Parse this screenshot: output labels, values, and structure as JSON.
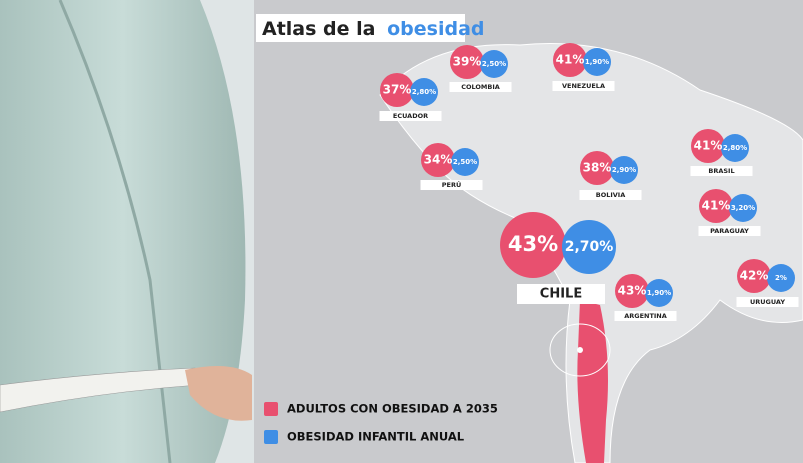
{
  "title": {
    "prefix": "Atlas de la",
    "highlight": "obesidad"
  },
  "countries": [
    {
      "name": "COLOMBIA",
      "adults": "39%",
      "children": "2,50%"
    },
    {
      "name": "VENEZUELA",
      "adults": "41%",
      "children": "1,90%"
    },
    {
      "name": "ECUADOR",
      "adults": "37%",
      "children": "2,80%"
    },
    {
      "name": "PERÚ",
      "adults": "34%",
      "children": "2,50%"
    },
    {
      "name": "BOLIVIA",
      "adults": "38%",
      "children": "2,90%"
    },
    {
      "name": "BRASIL",
      "adults": "41%",
      "children": "2,80%"
    },
    {
      "name": "PARAGUAY",
      "adults": "41%",
      "children": "3,20%"
    },
    {
      "name": "CHILE",
      "adults": "43%",
      "children": "2,70%"
    },
    {
      "name": "ARGENTINA",
      "adults": "43%",
      "children": "1,90%"
    },
    {
      "name": "URUGUAY",
      "adults": "42%",
      "children": "2%"
    }
  ],
  "legend": [
    {
      "label": "ADULTOS CON OBESIDAD A 2035",
      "color": "#e8506f"
    },
    {
      "label": "OBESIDAD INFANTIL ANUAL",
      "color": "#3f8ee5"
    }
  ]
}
